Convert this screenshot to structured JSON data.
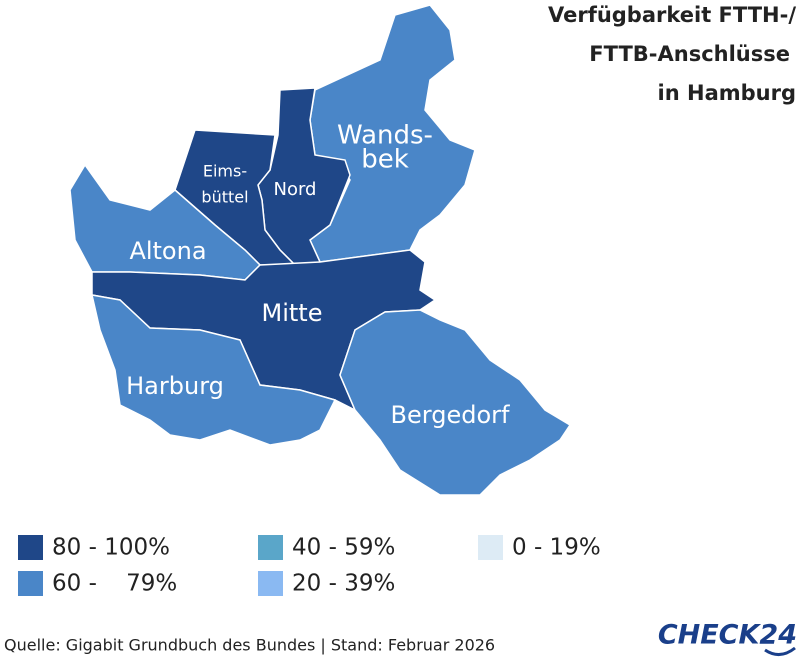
{
  "title": {
    "lines": [
      "Verfügbarkeit FTTH-/",
      "FTTB-Anschlüsse",
      "in Hamburg"
    ]
  },
  "legend": [
    {
      "label": "80 - 100%",
      "color": "#1f4788"
    },
    {
      "label": "60 -    79%",
      "color": "#4a86c8"
    },
    {
      "label": "40 - 59%",
      "color": "#5aa6c9"
    },
    {
      "label": "20 - 39%",
      "color": "#8ab9f2"
    },
    {
      "label": "0 - 19%",
      "color": "#ddebf5"
    }
  ],
  "districts": [
    {
      "lines": [
        "Wands-",
        "bek"
      ],
      "legend_index": 1
    },
    {
      "lines": [
        "Nord"
      ],
      "legend_index": 0
    },
    {
      "lines": [
        "Eims-",
        "büttel"
      ],
      "legend_index": 0
    },
    {
      "lines": [
        "Altona"
      ],
      "legend_index": 1
    },
    {
      "lines": [
        "Mitte"
      ],
      "legend_index": 0
    },
    {
      "lines": [
        "Harburg"
      ],
      "legend_index": 1
    },
    {
      "lines": [
        "Bergedorf"
      ],
      "legend_index": 1
    }
  ],
  "source": "Quelle: Gigabit Grundbuch des Bundes | Stand: Februar 2026",
  "logo": "CHECK24"
}
